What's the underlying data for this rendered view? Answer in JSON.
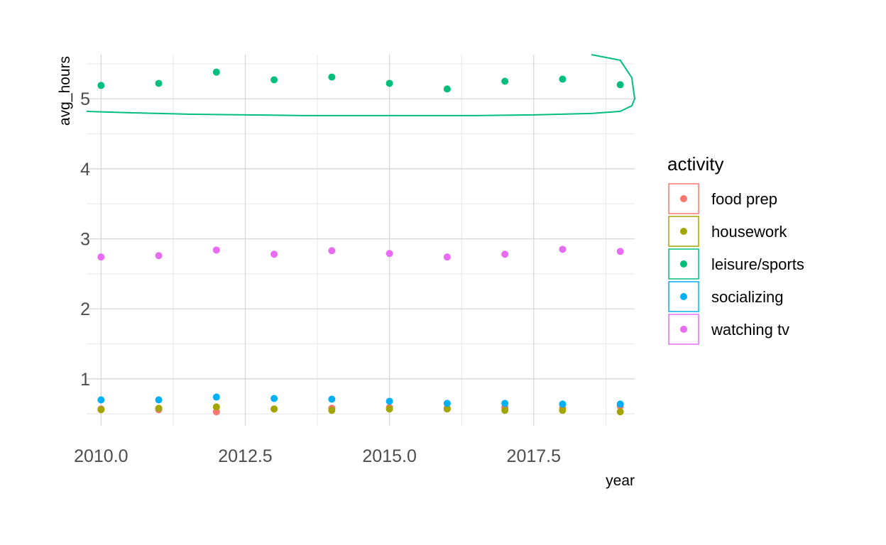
{
  "chart_data": {
    "type": "scatter",
    "title": "",
    "xlabel": "year",
    "ylabel": "avg_hours",
    "xlim": [
      2009.75,
      2019.25
    ],
    "ylim": [
      0.33,
      5.63
    ],
    "x_ticks": [
      "2010.0",
      "2012.5",
      "2015.0",
      "2017.5"
    ],
    "y_ticks": [
      "1",
      "2",
      "3",
      "4",
      "5"
    ],
    "x_tick_values": [
      2010.0,
      2012.5,
      2015.0,
      2017.5
    ],
    "y_tick_values": [
      1,
      2,
      3,
      4,
      5
    ],
    "grid": true,
    "legend_title": "activity",
    "legend_position": "right",
    "x": [
      2010,
      2011,
      2012,
      2013,
      2014,
      2015,
      2016,
      2017,
      2018,
      2019
    ],
    "series": [
      {
        "name": "food prep",
        "color": "#F8766D",
        "values": [
          0.57,
          0.56,
          0.53,
          0.57,
          0.58,
          0.59,
          0.58,
          0.59,
          0.58,
          0.61
        ]
      },
      {
        "name": "housework",
        "color": "#A3A500",
        "values": [
          0.56,
          0.58,
          0.6,
          0.57,
          0.55,
          0.57,
          0.57,
          0.55,
          0.55,
          0.53
        ]
      },
      {
        "name": "leisure/sports",
        "color": "#00BF7D",
        "values": [
          5.19,
          5.22,
          5.38,
          5.27,
          5.31,
          5.22,
          5.14,
          5.25,
          5.28,
          5.2
        ]
      },
      {
        "name": "socializing",
        "color": "#00B0F6",
        "values": [
          0.7,
          0.7,
          0.74,
          0.72,
          0.71,
          0.68,
          0.65,
          0.65,
          0.64,
          0.64
        ]
      },
      {
        "name": "watching tv",
        "color": "#E76BF3",
        "values": [
          2.74,
          2.76,
          2.84,
          2.78,
          2.83,
          2.79,
          2.74,
          2.78,
          2.85,
          2.82
        ]
      }
    ],
    "fit_line": {
      "series": "leisure/sports",
      "x": [
        2009.75,
        2010.5,
        2011.5,
        2012.5,
        2013.5,
        2014.5,
        2015.5,
        2016.5,
        2017.5,
        2018.5,
        2019.0,
        2019.2,
        2019.25,
        2019.2,
        2019.0,
        2018.5
      ],
      "y": [
        4.82,
        4.8,
        4.78,
        4.77,
        4.76,
        4.76,
        4.76,
        4.76,
        4.77,
        4.79,
        4.82,
        4.9,
        5.0,
        5.3,
        5.55,
        5.63
      ]
    }
  }
}
